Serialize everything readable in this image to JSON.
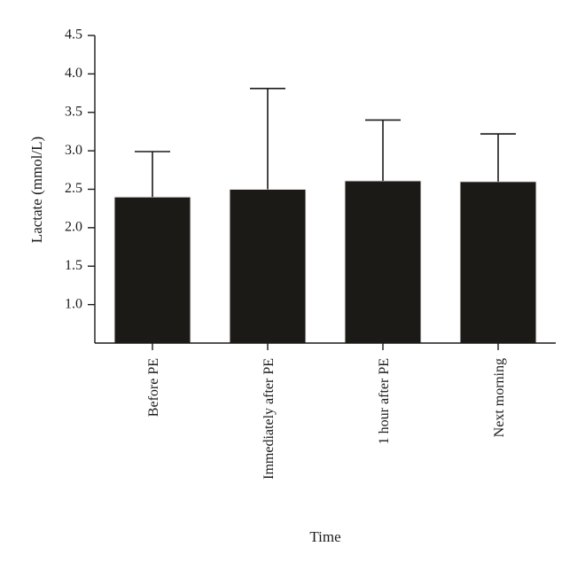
{
  "chart_data": {
    "type": "bar",
    "title": "",
    "xlabel": "Time",
    "ylabel": "Lactate (mmol/L)",
    "categories": [
      "Before PE",
      "Immediately after PE",
      "1 hour after PE",
      "Next morning"
    ],
    "values": [
      2.4,
      2.5,
      2.61,
      2.6
    ],
    "error_upper": [
      2.99,
      3.81,
      3.4,
      3.22
    ],
    "ylim": [
      0.5,
      4.5
    ],
    "yticks": [
      1.0,
      1.5,
      2.0,
      2.5,
      3.0,
      3.5,
      4.0,
      4.5
    ],
    "ytick_labels": [
      "1.0",
      "1.5",
      "2.0",
      "2.5",
      "3.0",
      "3.5",
      "4.0",
      "4.5"
    ],
    "grid": false,
    "legend": "none",
    "bar_color": "#1c1a17",
    "bar_edge_color": "#f0e8e8"
  }
}
